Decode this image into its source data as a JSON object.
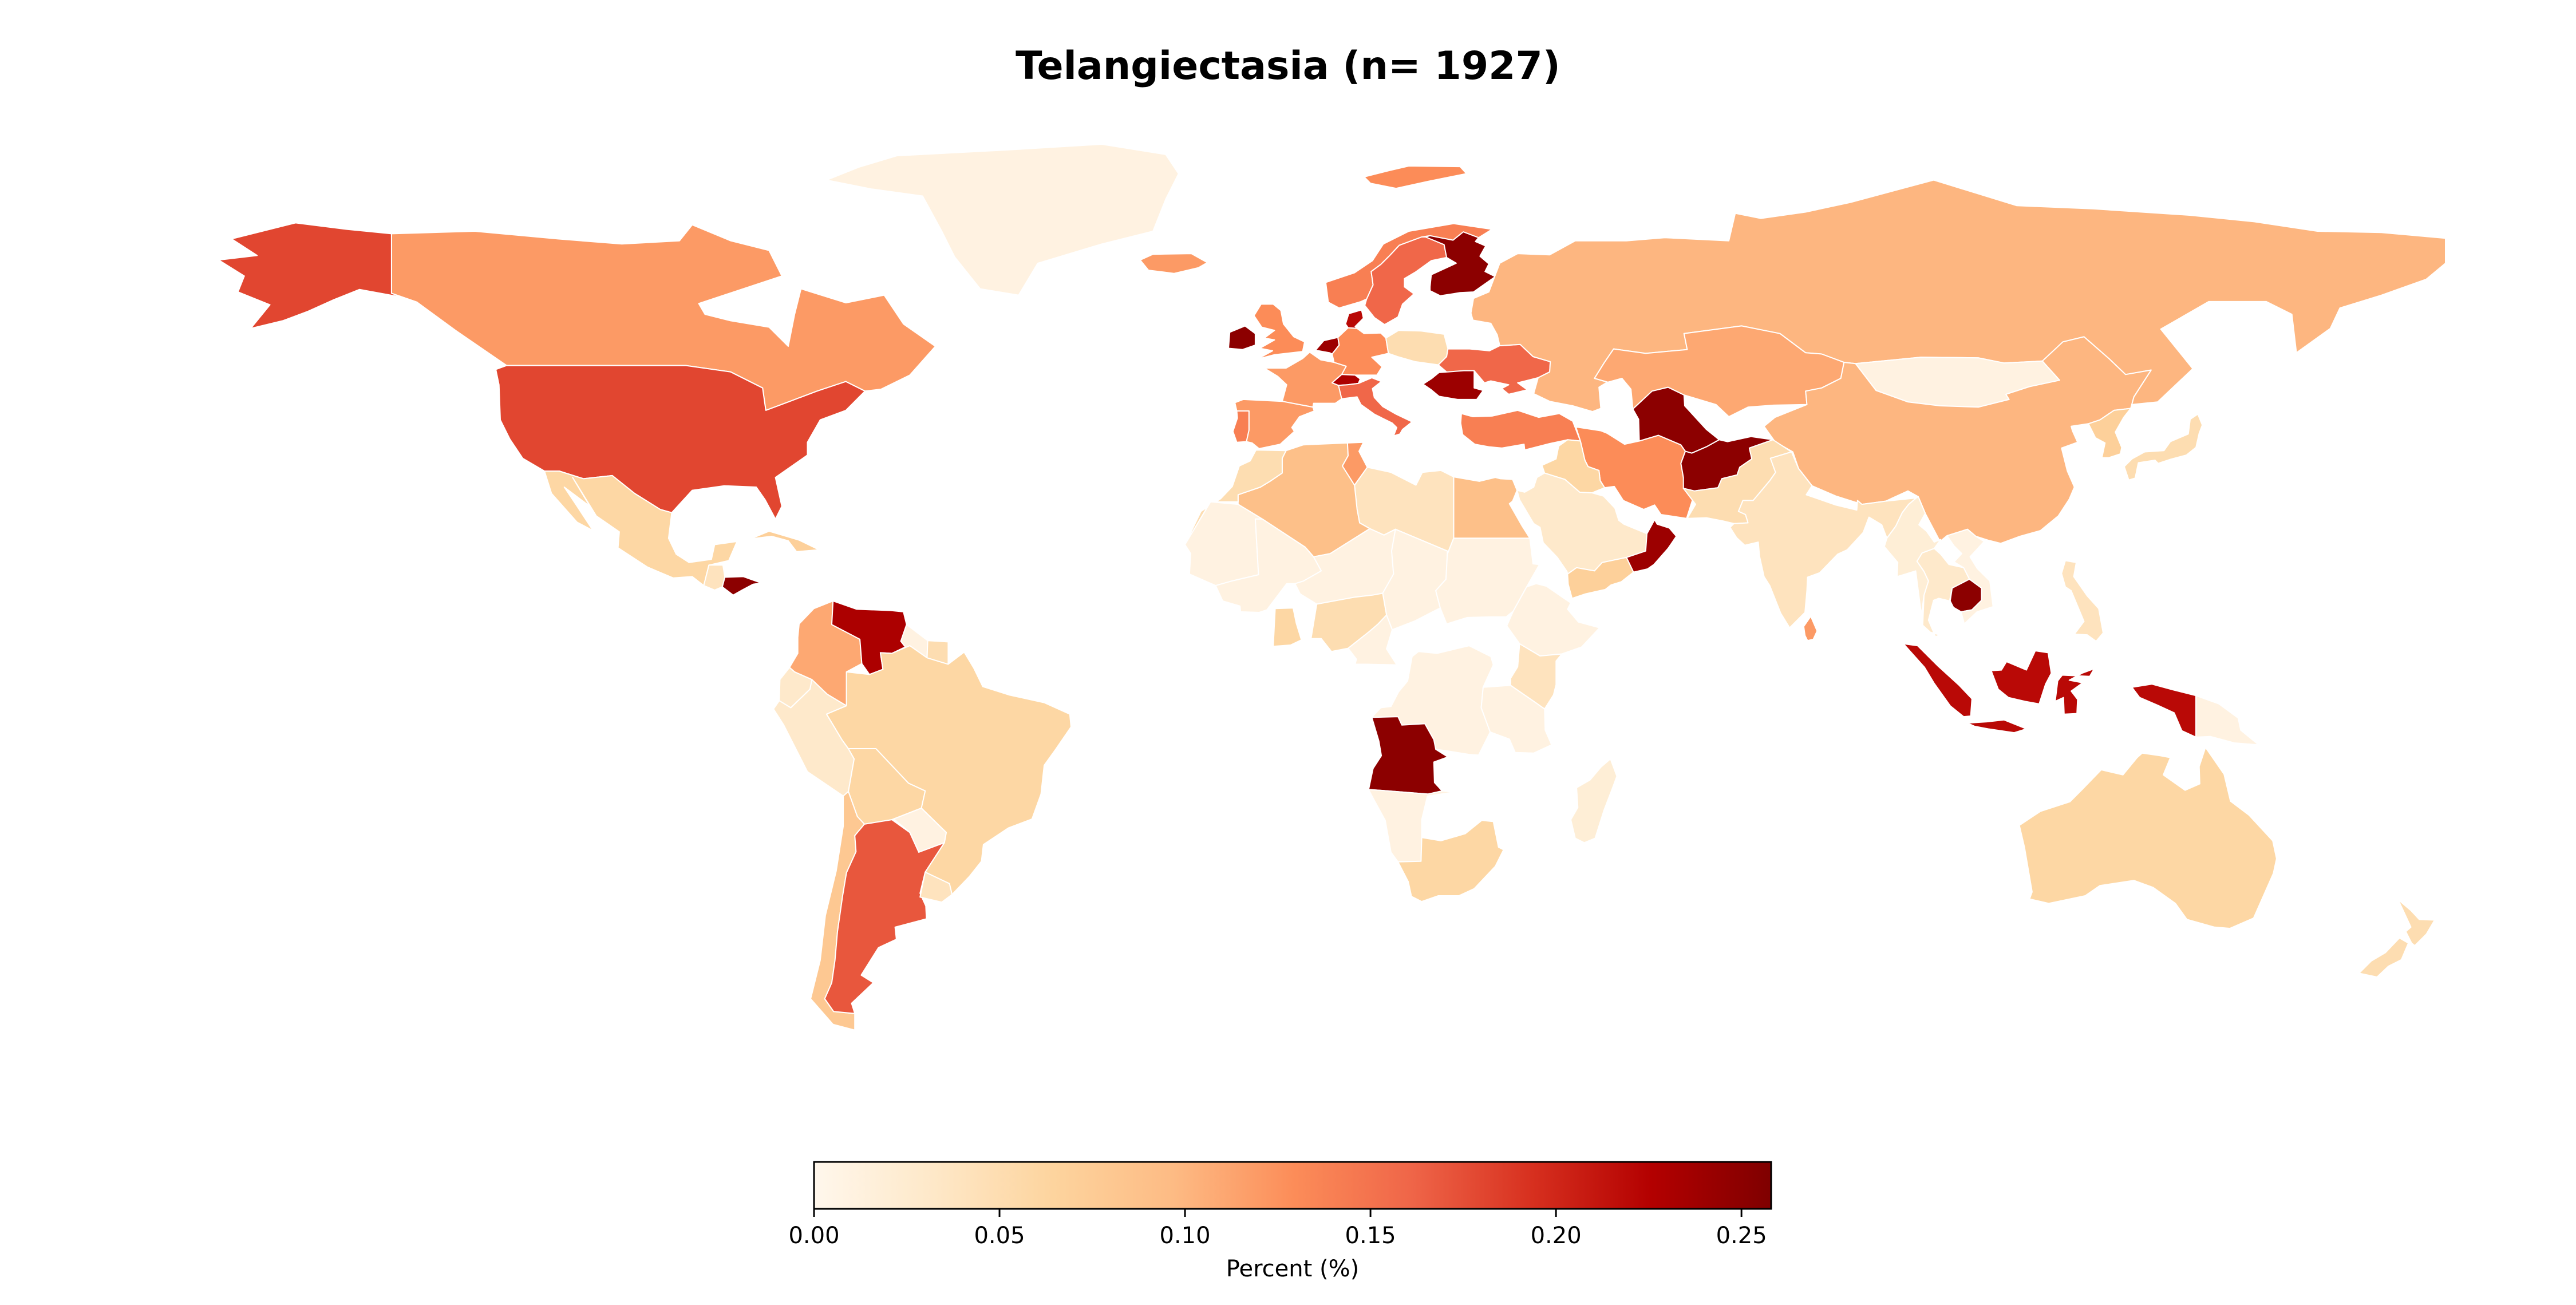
{
  "chart_data": {
    "type": "choropleth",
    "title": "Telangiectasia (n= 1927)",
    "colorbar": {
      "label": "Percent (%)",
      "range": [
        0.0,
        0.258
      ],
      "ticks": [
        "0.00",
        "0.05",
        "0.10",
        "0.15",
        "0.20",
        "0.25"
      ],
      "tick_values": [
        0.0,
        0.05,
        0.1,
        0.15,
        0.2,
        0.25
      ],
      "colormap": "OrRd",
      "stops": [
        "#fff7ec",
        "#fee8c8",
        "#fdd49e",
        "#fdbb84",
        "#fc8d59",
        "#ef6548",
        "#d7301f",
        "#b30000",
        "#7f0000"
      ]
    },
    "regions": [
      {
        "name": "Canada",
        "value": 0.12
      },
      {
        "name": "United States of America",
        "value": 0.18
      },
      {
        "name": "Alaska",
        "value": 0.18
      },
      {
        "name": "Greenland",
        "value": 0.01
      },
      {
        "name": "Mexico",
        "value": 0.06
      },
      {
        "name": "Guatemala",
        "value": 0.04
      },
      {
        "name": "Honduras",
        "value": 0.25
      },
      {
        "name": "Cuba",
        "value": 0.07
      },
      {
        "name": "Colombia",
        "value": 0.11
      },
      {
        "name": "Venezuela",
        "value": 0.23
      },
      {
        "name": "Guyana",
        "value": 0.01
      },
      {
        "name": "Suriname",
        "value": 0.05
      },
      {
        "name": "Ecuador",
        "value": 0.03
      },
      {
        "name": "Peru",
        "value": 0.03
      },
      {
        "name": "Brazil",
        "value": 0.06
      },
      {
        "name": "Bolivia",
        "value": 0.06
      },
      {
        "name": "Paraguay",
        "value": 0.01
      },
      {
        "name": "Chile",
        "value": 0.08
      },
      {
        "name": "Argentina",
        "value": 0.17
      },
      {
        "name": "Uruguay",
        "value": 0.04
      },
      {
        "name": "Iceland",
        "value": 0.12
      },
      {
        "name": "Ireland",
        "value": 0.25
      },
      {
        "name": "United Kingdom",
        "value": 0.13
      },
      {
        "name": "Norway",
        "value": 0.14
      },
      {
        "name": "Sweden",
        "value": 0.16
      },
      {
        "name": "Finland",
        "value": 0.25
      },
      {
        "name": "Denmark",
        "value": 0.22
      },
      {
        "name": "Netherlands",
        "value": 0.24
      },
      {
        "name": "France",
        "value": 0.12
      },
      {
        "name": "Spain",
        "value": 0.12
      },
      {
        "name": "Portugal",
        "value": 0.14
      },
      {
        "name": "Germany",
        "value": 0.13
      },
      {
        "name": "Switzerland",
        "value": 0.23
      },
      {
        "name": "Italy",
        "value": 0.16
      },
      {
        "name": "Poland",
        "value": 0.05
      },
      {
        "name": "Ukraine",
        "value": 0.16
      },
      {
        "name": "Romania",
        "value": 0.24
      },
      {
        "name": "Turkey",
        "value": 0.14
      },
      {
        "name": "Russia",
        "value": 0.1
      },
      {
        "name": "Kazakhstan",
        "value": 0.11
      },
      {
        "name": "Mongolia",
        "value": 0.01
      },
      {
        "name": "China",
        "value": 0.1
      },
      {
        "name": "Japan",
        "value": 0.05
      },
      {
        "name": "Korea",
        "value": 0.07
      },
      {
        "name": "Iran",
        "value": 0.13
      },
      {
        "name": "Afghanistan",
        "value": 0.25
      },
      {
        "name": "Turkmenistan",
        "value": 0.25
      },
      {
        "name": "Pakistan",
        "value": 0.05
      },
      {
        "name": "India",
        "value": 0.04
      },
      {
        "name": "Sri Lanka",
        "value": 0.12
      },
      {
        "name": "Saudi Arabia",
        "value": 0.03
      },
      {
        "name": "Oman",
        "value": 0.24
      },
      {
        "name": "Yemen",
        "value": 0.07
      },
      {
        "name": "Iraq",
        "value": 0.06
      },
      {
        "name": "Egypt",
        "value": 0.09
      },
      {
        "name": "Libya",
        "value": 0.04
      },
      {
        "name": "Algeria",
        "value": 0.09
      },
      {
        "name": "Morocco",
        "value": 0.05
      },
      {
        "name": "Tunisia",
        "value": 0.12
      },
      {
        "name": "Mauritania",
        "value": 0.01
      },
      {
        "name": "Mali",
        "value": 0.01
      },
      {
        "name": "Niger",
        "value": 0.01
      },
      {
        "name": "Chad",
        "value": 0.01
      },
      {
        "name": "Sudan",
        "value": 0.01
      },
      {
        "name": "Ethiopia",
        "value": 0.01
      },
      {
        "name": "Nigeria",
        "value": 0.05
      },
      {
        "name": "Ghana",
        "value": 0.06
      },
      {
        "name": "Cameroon",
        "value": 0.01
      },
      {
        "name": "Kenya",
        "value": 0.04
      },
      {
        "name": "Angola",
        "value": 0.25
      },
      {
        "name": "DR Congo",
        "value": 0.01
      },
      {
        "name": "Tanzania",
        "value": 0.01
      },
      {
        "name": "Namibia",
        "value": 0.01
      },
      {
        "name": "South Africa",
        "value": 0.06
      },
      {
        "name": "Madagascar",
        "value": 0.02
      },
      {
        "name": "Thailand",
        "value": 0.03
      },
      {
        "name": "Myanmar",
        "value": 0.02
      },
      {
        "name": "Cambodia",
        "value": 0.25
      },
      {
        "name": "Vietnam",
        "value": 0.01
      },
      {
        "name": "Philippines",
        "value": 0.04
      },
      {
        "name": "Indonesia",
        "value": 0.22
      },
      {
        "name": "Papua New Guinea",
        "value": 0.01
      },
      {
        "name": "Australia",
        "value": 0.06
      },
      {
        "name": "New Zealand",
        "value": 0.05
      },
      {
        "name": "Svalbard",
        "value": 0.13
      }
    ]
  }
}
